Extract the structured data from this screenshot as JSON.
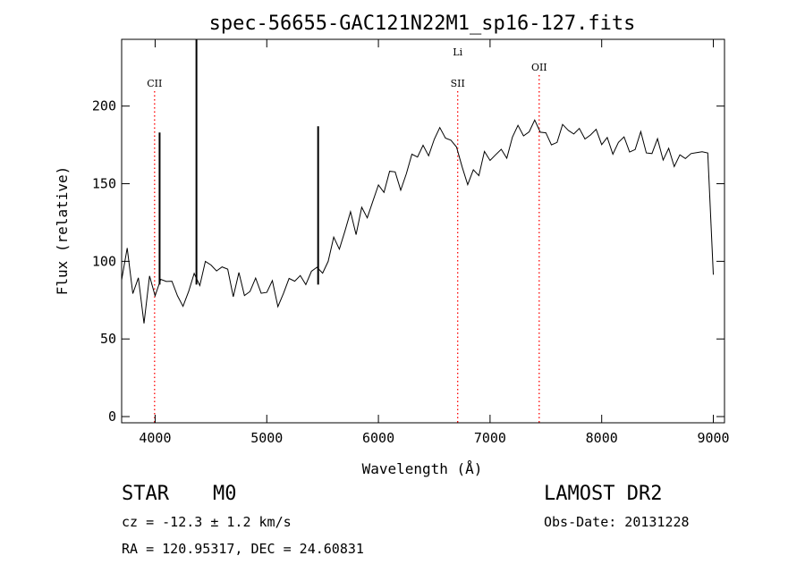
{
  "chart_data": {
    "type": "line",
    "title": "spec-56655-GAC121N22M1_sp16-127.fits",
    "xlabel": "Wavelength (Å)",
    "ylabel": "Flux (relative)",
    "xlim": [
      3700,
      9100
    ],
    "ylim": [
      -4,
      243
    ],
    "xticks": [
      4000,
      5000,
      6000,
      7000,
      8000,
      9000
    ],
    "yticks": [
      0,
      50,
      100,
      150,
      200
    ],
    "grid": false,
    "series": [
      {
        "x": [
          3700,
          3750,
          3800,
          3850,
          3900,
          3950,
          4000,
          4050,
          4100,
          4150,
          4200,
          4250,
          4300,
          4350,
          4400,
          4450,
          4500,
          4550,
          4600,
          4650,
          4700,
          4750,
          4800,
          4850,
          4900,
          4950,
          5000,
          5050,
          5100,
          5150,
          5200,
          5250,
          5300,
          5350,
          5400,
          5450,
          5500,
          5550,
          5600,
          5650,
          5700,
          5750,
          5800,
          5850,
          5900,
          5950,
          6000,
          6050,
          6100,
          6150,
          6200,
          6250,
          6300,
          6350,
          6400,
          6450,
          6500,
          6550,
          6600,
          6650,
          6700,
          6750,
          6800,
          6850,
          6900,
          6950,
          7000,
          7050,
          7100,
          7150,
          7200,
          7250,
          7300,
          7350,
          7400,
          7450,
          7500,
          7550,
          7600,
          7650,
          7700,
          7750,
          7800,
          7850,
          7900,
          7950,
          8000,
          8050,
          8100,
          8150,
          8200,
          8250,
          8300,
          8350,
          8400,
          8450,
          8500,
          8550,
          8600,
          8650,
          8700,
          8750,
          8800,
          8850,
          8900,
          8950,
          9000
        ],
        "y": [
          95,
          110,
          75,
          95,
          60,
          85,
          82,
          87,
          80,
          90,
          75,
          78,
          82,
          88,
          90,
          100,
          92,
          98,
          95,
          88,
          80,
          90,
          85,
          82,
          85,
          85,
          80,
          82,
          75,
          78,
          82,
          90,
          88,
          92,
          95,
          92,
          98,
          100,
          110,
          112,
          118,
          125,
          120,
          132,
          135,
          140,
          145,
          150,
          158,
          152,
          150,
          155,
          162,
          170,
          172,
          175,
          180,
          182,
          185,
          178,
          168,
          165,
          148,
          152,
          158,
          168,
          172,
          170,
          168,
          172,
          180,
          182,
          185,
          182,
          184,
          186,
          180,
          182,
          178,
          184,
          190,
          182,
          180,
          183,
          180,
          178,
          178,
          177,
          176,
          178,
          176,
          176,
          172,
          178,
          174,
          168,
          172,
          168,
          170,
          168,
          170,
          162,
          175,
          170,
          165,
          174,
          90
        ]
      }
    ],
    "spikes": [
      {
        "x": 4040,
        "y": 183
      },
      {
        "x": 4370,
        "y": 243
      },
      {
        "x": 5460,
        "y": 187
      }
    ],
    "reference_lines": [
      {
        "label": "CII",
        "x": 3995,
        "color": "#ff0000"
      },
      {
        "label": "SII",
        "x": 6710,
        "color": "#ff0000"
      },
      {
        "label": "Li",
        "x": 6710,
        "color": "#ff0000"
      },
      {
        "label": "OII",
        "x": 7440,
        "color": "#ff0000"
      }
    ]
  },
  "info": {
    "class": "STAR",
    "subclass": "M0",
    "survey": "LAMOST DR2",
    "cz": "cz = -12.3 ± 1.2 km/s",
    "obs_date": "Obs-Date: 20131228",
    "coords": "RA = 120.95317, DEC =  24.60831"
  }
}
